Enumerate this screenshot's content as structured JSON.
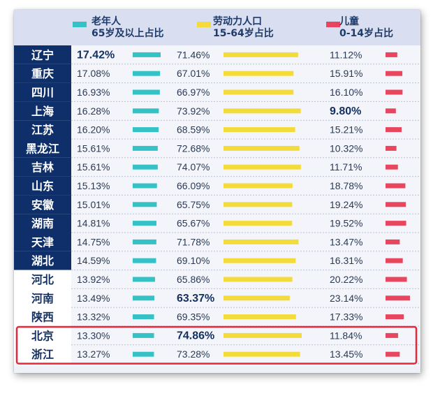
{
  "chart_data": {
    "type": "table",
    "columns": [
      {
        "key": "elderly",
        "line1": "老年人",
        "line2": "65岁及以上占比",
        "color": "#35c2c7"
      },
      {
        "key": "labor",
        "line1": "劳动力人口",
        "line2": "15-64岁占比",
        "color": "#f4db3c"
      },
      {
        "key": "children",
        "line1": "儿童",
        "line2": "0-14岁占比",
        "color": "#e8455f"
      }
    ],
    "rows": [
      {
        "province": "辽宁",
        "elderly": 17.42,
        "labor": 71.46,
        "children": 11.12,
        "elderly_label": "17.42%",
        "labor_label": "71.46%",
        "children_label": "11.12%"
      },
      {
        "province": "重庆",
        "elderly": 17.08,
        "labor": 67.01,
        "children": 15.91,
        "elderly_label": "17.08%",
        "labor_label": "67.01%",
        "children_label": "15.91%"
      },
      {
        "province": "四川",
        "elderly": 16.93,
        "labor": 66.97,
        "children": 16.1,
        "elderly_label": "16.93%",
        "labor_label": "66.97%",
        "children_label": "16.10%"
      },
      {
        "province": "上海",
        "elderly": 16.28,
        "labor": 73.92,
        "children": 9.8,
        "elderly_label": "16.28%",
        "labor_label": "73.92%",
        "children_label": "9.80%"
      },
      {
        "province": "江苏",
        "elderly": 16.2,
        "labor": 68.59,
        "children": 15.21,
        "elderly_label": "16.20%",
        "labor_label": "68.59%",
        "children_label": "15.21%"
      },
      {
        "province": "黑龙江",
        "elderly": 15.61,
        "labor": 72.68,
        "children": 10.32,
        "elderly_label": "15.61%",
        "labor_label": "72.68%",
        "children_label": "10.32%"
      },
      {
        "province": "吉林",
        "elderly": 15.61,
        "labor": 74.07,
        "children": 11.71,
        "elderly_label": "15.61%",
        "labor_label": "74.07%",
        "children_label": "11.71%"
      },
      {
        "province": "山东",
        "elderly": 15.13,
        "labor": 66.09,
        "children": 18.78,
        "elderly_label": "15.13%",
        "labor_label": "66.09%",
        "children_label": "18.78%"
      },
      {
        "province": "安徽",
        "elderly": 15.01,
        "labor": 65.75,
        "children": 19.24,
        "elderly_label": "15.01%",
        "labor_label": "65.75%",
        "children_label": "19.24%"
      },
      {
        "province": "湖南",
        "elderly": 14.81,
        "labor": 65.67,
        "children": 19.52,
        "elderly_label": "14.81%",
        "labor_label": "65.67%",
        "children_label": "19.52%"
      },
      {
        "province": "天津",
        "elderly": 14.75,
        "labor": 71.78,
        "children": 13.47,
        "elderly_label": "14.75%",
        "labor_label": "71.78%",
        "children_label": "13.47%"
      },
      {
        "province": "湖北",
        "elderly": 14.59,
        "labor": 69.1,
        "children": 16.31,
        "elderly_label": "14.59%",
        "labor_label": "69.10%",
        "children_label": "16.31%"
      },
      {
        "province": "河北",
        "elderly": 13.92,
        "labor": 65.86,
        "children": 20.22,
        "elderly_label": "13.92%",
        "labor_label": "65.86%",
        "children_label": "20.22%"
      },
      {
        "province": "河南",
        "elderly": 13.49,
        "labor": 63.37,
        "children": 23.14,
        "elderly_label": "13.49%",
        "labor_label": "63.37%",
        "children_label": "23.14%"
      },
      {
        "province": "陕西",
        "elderly": 13.32,
        "labor": 69.35,
        "children": 17.33,
        "elderly_label": "13.32%",
        "labor_label": "69.35%",
        "children_label": "17.33%"
      },
      {
        "province": "北京",
        "elderly": 13.3,
        "labor": 74.86,
        "children": 11.84,
        "elderly_label": "13.30%",
        "labor_label": "74.86%",
        "children_label": "11.84%"
      },
      {
        "province": "浙江",
        "elderly": 13.27,
        "labor": 73.28,
        "children": 13.45,
        "elderly_label": "13.27%",
        "labor_label": "73.28%",
        "children_label": "13.45%"
      }
    ],
    "emphasized_values": [
      {
        "column": "elderly",
        "province": "辽宁"
      },
      {
        "column": "labor",
        "province": "河南"
      },
      {
        "column": "labor",
        "province": "北京"
      },
      {
        "column": "children",
        "province": "上海"
      }
    ],
    "highlighted_rows": [
      "北京",
      "浙江"
    ],
    "dark_label_rows": 12,
    "highlight_color": "#e8283a",
    "header_band_color": "#d9dff0",
    "dark_label_color": "#0e2f6a",
    "grid": true,
    "legend_placement": "top"
  }
}
